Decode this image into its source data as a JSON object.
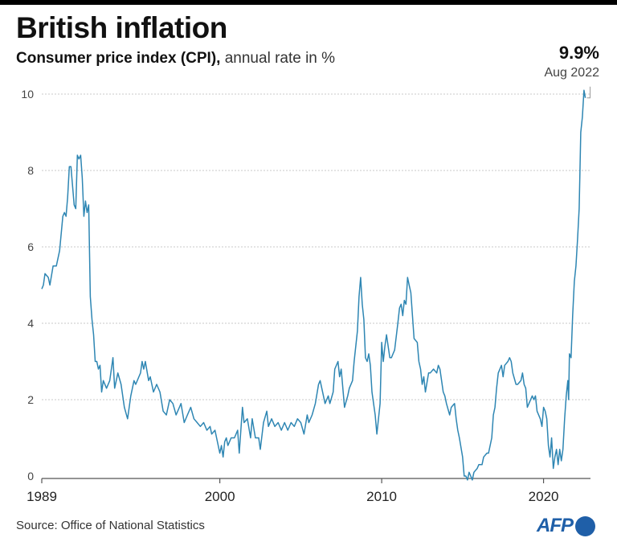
{
  "header": {
    "title": "British inflation",
    "subtitle_strong": "Consumer price index (CPI),",
    "subtitle_rest": " annual rate in %"
  },
  "callout": {
    "value": "9.9%",
    "date": "Aug 2022"
  },
  "footer": {
    "source": "Source: Office of National Statistics",
    "logo_text": "AFP"
  },
  "colors": {
    "line": "#2e86b3",
    "grid": "#c8c8c8",
    "axis": "#555555",
    "brand": "#1f5fa8"
  },
  "chart_data": {
    "type": "line",
    "title": "British inflation",
    "subtitle": "Consumer price index (CPI), annual rate in %",
    "xlabel": "",
    "ylabel": "",
    "x_ticks": [
      "1989",
      "2000",
      "2010",
      "2020"
    ],
    "x_tick_values": [
      1989,
      2000,
      2010,
      2020
    ],
    "y_ticks": [
      0,
      2,
      4,
      6,
      8,
      10
    ],
    "xlim": [
      1989,
      2022.9
    ],
    "ylim": [
      0,
      10
    ],
    "grid": true,
    "legend": "none",
    "annotation": {
      "x": 2022.58,
      "y": 9.9,
      "value": "9.9%",
      "label": "Aug 2022"
    },
    "series": [
      {
        "values": [
          [
            1989.0,
            4.9
          ],
          [
            1989.1,
            5.0
          ],
          [
            1989.2,
            5.3
          ],
          [
            1989.4,
            5.2
          ],
          [
            1989.5,
            5.0
          ],
          [
            1989.7,
            5.5
          ],
          [
            1989.9,
            5.5
          ],
          [
            1990.1,
            5.9
          ],
          [
            1990.3,
            6.8
          ],
          [
            1990.4,
            6.9
          ],
          [
            1990.5,
            6.8
          ],
          [
            1990.6,
            7.3
          ],
          [
            1990.7,
            8.1
          ],
          [
            1990.8,
            8.1
          ],
          [
            1990.9,
            7.6
          ],
          [
            1991.0,
            7.1
          ],
          [
            1991.1,
            7.0
          ],
          [
            1991.2,
            8.4
          ],
          [
            1991.3,
            8.3
          ],
          [
            1991.4,
            8.4
          ],
          [
            1991.5,
            7.8
          ],
          [
            1991.6,
            6.8
          ],
          [
            1991.7,
            7.2
          ],
          [
            1991.8,
            6.9
          ],
          [
            1991.9,
            7.1
          ],
          [
            1992.0,
            4.7
          ],
          [
            1992.1,
            4.1
          ],
          [
            1992.2,
            3.7
          ],
          [
            1992.3,
            3.0
          ],
          [
            1992.4,
            3.0
          ],
          [
            1992.5,
            2.8
          ],
          [
            1992.6,
            2.9
          ],
          [
            1992.7,
            2.2
          ],
          [
            1992.8,
            2.5
          ],
          [
            1993.0,
            2.3
          ],
          [
            1993.2,
            2.5
          ],
          [
            1993.4,
            3.1
          ],
          [
            1993.5,
            2.3
          ],
          [
            1993.7,
            2.7
          ],
          [
            1993.9,
            2.4
          ],
          [
            1994.1,
            1.8
          ],
          [
            1994.3,
            1.5
          ],
          [
            1994.5,
            2.1
          ],
          [
            1994.7,
            2.5
          ],
          [
            1994.8,
            2.4
          ],
          [
            1995.0,
            2.6
          ],
          [
            1995.1,
            2.7
          ],
          [
            1995.2,
            3.0
          ],
          [
            1995.3,
            2.8
          ],
          [
            1995.4,
            3.0
          ],
          [
            1995.6,
            2.5
          ],
          [
            1995.7,
            2.6
          ],
          [
            1995.9,
            2.2
          ],
          [
            1996.1,
            2.4
          ],
          [
            1996.3,
            2.2
          ],
          [
            1996.5,
            1.7
          ],
          [
            1996.7,
            1.6
          ],
          [
            1996.9,
            2.0
          ],
          [
            1997.1,
            1.9
          ],
          [
            1997.3,
            1.6
          ],
          [
            1997.5,
            1.8
          ],
          [
            1997.6,
            1.9
          ],
          [
            1997.8,
            1.4
          ],
          [
            1998.0,
            1.6
          ],
          [
            1998.2,
            1.8
          ],
          [
            1998.4,
            1.5
          ],
          [
            1998.6,
            1.4
          ],
          [
            1998.8,
            1.3
          ],
          [
            1999.0,
            1.4
          ],
          [
            1999.2,
            1.2
          ],
          [
            1999.4,
            1.3
          ],
          [
            1999.5,
            1.1
          ],
          [
            1999.7,
            1.2
          ],
          [
            1999.9,
            0.8
          ],
          [
            2000.0,
            0.6
          ],
          [
            2000.1,
            0.8
          ],
          [
            2000.2,
            0.5
          ],
          [
            2000.3,
            0.9
          ],
          [
            2000.4,
            1.0
          ],
          [
            2000.5,
            0.8
          ],
          [
            2000.7,
            1.0
          ],
          [
            2000.9,
            1.0
          ],
          [
            2001.1,
            1.2
          ],
          [
            2001.2,
            0.6
          ],
          [
            2001.4,
            1.8
          ],
          [
            2001.5,
            1.4
          ],
          [
            2001.7,
            1.5
          ],
          [
            2001.9,
            1.0
          ],
          [
            2002.0,
            1.5
          ],
          [
            2002.2,
            1.0
          ],
          [
            2002.4,
            1.0
          ],
          [
            2002.5,
            0.7
          ],
          [
            2002.7,
            1.4
          ],
          [
            2002.9,
            1.7
          ],
          [
            2003.0,
            1.3
          ],
          [
            2003.2,
            1.5
          ],
          [
            2003.4,
            1.3
          ],
          [
            2003.6,
            1.4
          ],
          [
            2003.8,
            1.2
          ],
          [
            2004.0,
            1.4
          ],
          [
            2004.2,
            1.2
          ],
          [
            2004.4,
            1.4
          ],
          [
            2004.6,
            1.3
          ],
          [
            2004.8,
            1.5
          ],
          [
            2005.0,
            1.4
          ],
          [
            2005.2,
            1.1
          ],
          [
            2005.4,
            1.6
          ],
          [
            2005.5,
            1.4
          ],
          [
            2005.7,
            1.6
          ],
          [
            2005.9,
            1.9
          ],
          [
            2006.1,
            2.4
          ],
          [
            2006.2,
            2.5
          ],
          [
            2006.4,
            2.1
          ],
          [
            2006.5,
            1.9
          ],
          [
            2006.7,
            2.1
          ],
          [
            2006.8,
            1.9
          ],
          [
            2007.0,
            2.2
          ],
          [
            2007.1,
            2.8
          ],
          [
            2007.3,
            3.0
          ],
          [
            2007.4,
            2.6
          ],
          [
            2007.5,
            2.8
          ],
          [
            2007.7,
            1.8
          ],
          [
            2007.9,
            2.1
          ],
          [
            2008.0,
            2.3
          ],
          [
            2008.2,
            2.5
          ],
          [
            2008.3,
            3.0
          ],
          [
            2008.5,
            3.8
          ],
          [
            2008.6,
            4.7
          ],
          [
            2008.7,
            5.2
          ],
          [
            2008.8,
            4.5
          ],
          [
            2008.9,
            4.1
          ],
          [
            2009.0,
            3.1
          ],
          [
            2009.1,
            3.0
          ],
          [
            2009.2,
            3.2
          ],
          [
            2009.3,
            2.9
          ],
          [
            2009.4,
            2.2
          ],
          [
            2009.6,
            1.6
          ],
          [
            2009.7,
            1.1
          ],
          [
            2009.9,
            1.9
          ],
          [
            2010.0,
            3.5
          ],
          [
            2010.1,
            3.0
          ],
          [
            2010.2,
            3.4
          ],
          [
            2010.3,
            3.7
          ],
          [
            2010.5,
            3.1
          ],
          [
            2010.6,
            3.1
          ],
          [
            2010.7,
            3.2
          ],
          [
            2010.8,
            3.3
          ],
          [
            2011.0,
            4.0
          ],
          [
            2011.1,
            4.4
          ],
          [
            2011.2,
            4.5
          ],
          [
            2011.3,
            4.2
          ],
          [
            2011.4,
            4.6
          ],
          [
            2011.5,
            4.5
          ],
          [
            2011.6,
            5.2
          ],
          [
            2011.7,
            5.0
          ],
          [
            2011.8,
            4.8
          ],
          [
            2011.9,
            4.2
          ],
          [
            2012.0,
            3.6
          ],
          [
            2012.2,
            3.5
          ],
          [
            2012.3,
            3.0
          ],
          [
            2012.4,
            2.8
          ],
          [
            2012.5,
            2.4
          ],
          [
            2012.6,
            2.6
          ],
          [
            2012.7,
            2.2
          ],
          [
            2012.9,
            2.7
          ],
          [
            2013.0,
            2.7
          ],
          [
            2013.2,
            2.8
          ],
          [
            2013.4,
            2.7
          ],
          [
            2013.5,
            2.9
          ],
          [
            2013.6,
            2.8
          ],
          [
            2013.8,
            2.2
          ],
          [
            2013.9,
            2.1
          ],
          [
            2014.0,
            1.9
          ],
          [
            2014.2,
            1.6
          ],
          [
            2014.3,
            1.8
          ],
          [
            2014.5,
            1.9
          ],
          [
            2014.6,
            1.5
          ],
          [
            2014.7,
            1.2
          ],
          [
            2014.8,
            1.0
          ],
          [
            2015.0,
            0.5
          ],
          [
            2015.1,
            0.0
          ],
          [
            2015.2,
            0.0
          ],
          [
            2015.3,
            -0.1
          ],
          [
            2015.4,
            0.1
          ],
          [
            2015.5,
            0.0
          ],
          [
            2015.6,
            -0.1
          ],
          [
            2015.7,
            0.1
          ],
          [
            2015.9,
            0.2
          ],
          [
            2016.0,
            0.3
          ],
          [
            2016.2,
            0.3
          ],
          [
            2016.3,
            0.5
          ],
          [
            2016.5,
            0.6
          ],
          [
            2016.6,
            0.6
          ],
          [
            2016.8,
            1.0
          ],
          [
            2016.9,
            1.6
          ],
          [
            2017.0,
            1.8
          ],
          [
            2017.1,
            2.3
          ],
          [
            2017.2,
            2.7
          ],
          [
            2017.4,
            2.9
          ],
          [
            2017.5,
            2.6
          ],
          [
            2017.6,
            2.9
          ],
          [
            2017.8,
            3.0
          ],
          [
            2017.9,
            3.1
          ],
          [
            2018.0,
            3.0
          ],
          [
            2018.1,
            2.7
          ],
          [
            2018.3,
            2.4
          ],
          [
            2018.4,
            2.4
          ],
          [
            2018.6,
            2.5
          ],
          [
            2018.7,
            2.7
          ],
          [
            2018.8,
            2.4
          ],
          [
            2018.9,
            2.3
          ],
          [
            2019.0,
            1.8
          ],
          [
            2019.1,
            1.9
          ],
          [
            2019.3,
            2.1
          ],
          [
            2019.4,
            2.0
          ],
          [
            2019.5,
            2.1
          ],
          [
            2019.6,
            1.7
          ],
          [
            2019.8,
            1.5
          ],
          [
            2019.9,
            1.3
          ],
          [
            2020.0,
            1.8
          ],
          [
            2020.1,
            1.7
          ],
          [
            2020.2,
            1.5
          ],
          [
            2020.3,
            0.8
          ],
          [
            2020.4,
            0.5
          ],
          [
            2020.5,
            1.0
          ],
          [
            2020.6,
            0.2
          ],
          [
            2020.7,
            0.5
          ],
          [
            2020.8,
            0.7
          ],
          [
            2020.9,
            0.3
          ],
          [
            2021.0,
            0.7
          ],
          [
            2021.1,
            0.4
          ],
          [
            2021.2,
            0.7
          ],
          [
            2021.3,
            1.5
          ],
          [
            2021.4,
            2.1
          ],
          [
            2021.5,
            2.5
          ],
          [
            2021.55,
            2.0
          ],
          [
            2021.6,
            3.2
          ],
          [
            2021.7,
            3.1
          ],
          [
            2021.8,
            4.2
          ],
          [
            2021.9,
            5.1
          ],
          [
            2022.0,
            5.5
          ],
          [
            2022.1,
            6.2
          ],
          [
            2022.2,
            7.0
          ],
          [
            2022.3,
            9.0
          ],
          [
            2022.4,
            9.4
          ],
          [
            2022.5,
            10.1
          ],
          [
            2022.58,
            9.9
          ]
        ]
      }
    ]
  }
}
